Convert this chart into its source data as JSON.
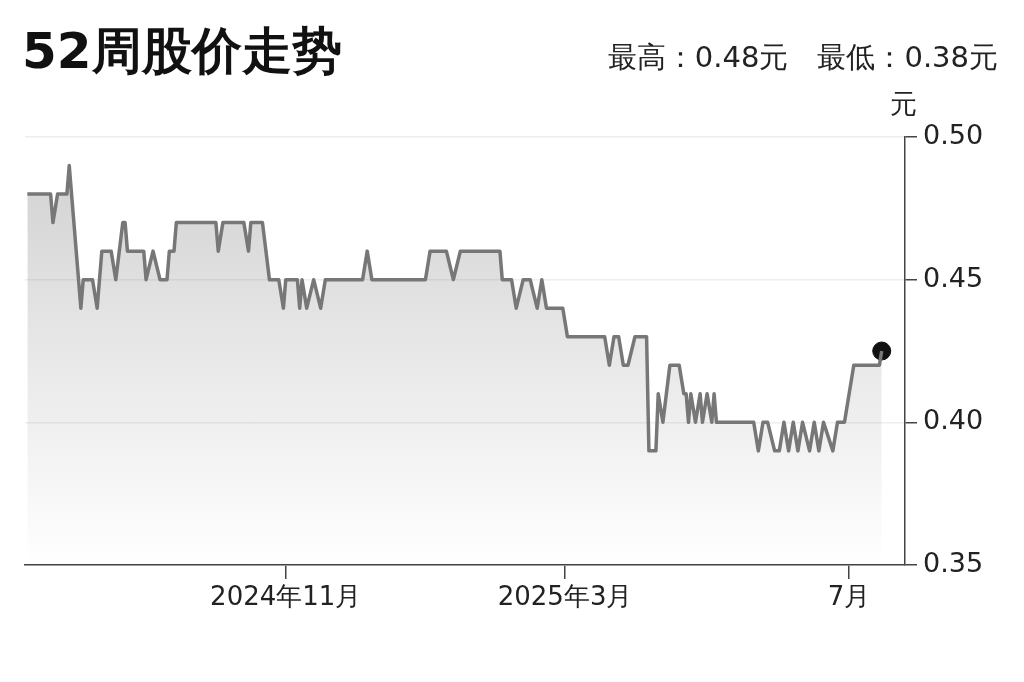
{
  "chart_data": {
    "type": "area",
    "title": "52周股价走势",
    "subtitle": "最高：0.48元　最低：0.38元",
    "ylabel": "元",
    "xlim": [
      "2024-07-12",
      "2025-07-25"
    ],
    "xticks": [
      {
        "value": "2024-11-01",
        "label": "2024年11月"
      },
      {
        "value": "2025-03-01",
        "label": "2025年3月"
      },
      {
        "value": "2025-07-01",
        "label": "7月"
      }
    ],
    "ylim": [
      0.35,
      0.5
    ],
    "yticks": [
      {
        "value": 0.35,
        "label": "0.35"
      },
      {
        "value": 0.4,
        "label": "0.40"
      },
      {
        "value": 0.45,
        "label": "0.45"
      },
      {
        "value": 0.5,
        "label": "0.50"
      }
    ],
    "grid": "y",
    "legend": false,
    "series": [
      {
        "type": "area",
        "color": "#777777",
        "marker": "none",
        "x": [
          "2024-07-13",
          "2024-07-23",
          "2024-07-24",
          "2024-07-26",
          "2024-07-30",
          "2024-07-31",
          "2024-08-03",
          "2024-08-05",
          "2024-08-06",
          "2024-08-10",
          "2024-08-12",
          "2024-08-14",
          "2024-08-18",
          "2024-08-20",
          "2024-08-23",
          "2024-08-24",
          "2024-08-25",
          "2024-09-01",
          "2024-09-02",
          "2024-09-05",
          "2024-09-08",
          "2024-09-11",
          "2024-09-12",
          "2024-09-14",
          "2024-09-15",
          "2024-10-02",
          "2024-10-03",
          "2024-10-05",
          "2024-10-14",
          "2024-10-16",
          "2024-10-17",
          "2024-10-22",
          "2024-10-25",
          "2024-10-29",
          "2024-10-31",
          "2024-11-01",
          "2024-11-06",
          "2024-11-07",
          "2024-11-08",
          "2024-11-10",
          "2024-11-13",
          "2024-11-16",
          "2024-11-18",
          "2024-12-04",
          "2024-12-06",
          "2024-12-08",
          "2024-12-31",
          "2025-01-02",
          "2025-01-09",
          "2025-01-12",
          "2025-01-15",
          "2025-02-01",
          "2025-02-02",
          "2025-02-06",
          "2025-02-08",
          "2025-02-11",
          "2025-02-14",
          "2025-02-17",
          "2025-02-19",
          "2025-02-21",
          "2025-02-28",
          "2025-03-02",
          "2025-03-18",
          "2025-03-20",
          "2025-03-22",
          "2025-03-24",
          "2025-03-26",
          "2025-03-28",
          "2025-03-31",
          "2025-04-02",
          "2025-04-05",
          "2025-04-06",
          "2025-04-09",
          "2025-04-10",
          "2025-04-12",
          "2025-04-15",
          "2025-04-19",
          "2025-04-21",
          "2025-04-22",
          "2025-04-23",
          "2025-04-24",
          "2025-04-26",
          "2025-04-28",
          "2025-04-29",
          "2025-05-01",
          "2025-05-03",
          "2025-05-04",
          "2025-05-05",
          "2025-05-21",
          "2025-05-23",
          "2025-05-25",
          "2025-05-27",
          "2025-05-30",
          "2025-06-01",
          "2025-06-03",
          "2025-06-05",
          "2025-06-07",
          "2025-06-09",
          "2025-06-11",
          "2025-06-14",
          "2025-06-16",
          "2025-06-18",
          "2025-06-20",
          "2025-06-24",
          "2025-06-26",
          "2025-06-29",
          "2025-07-01",
          "2025-07-03",
          "2025-07-14",
          "2025-07-15"
        ],
        "values": [
          0.48,
          0.48,
          0.47,
          0.48,
          0.48,
          0.49,
          0.46,
          0.44,
          0.45,
          0.45,
          0.44,
          0.46,
          0.46,
          0.45,
          0.47,
          0.47,
          0.46,
          0.46,
          0.45,
          0.46,
          0.45,
          0.45,
          0.46,
          0.46,
          0.47,
          0.47,
          0.46,
          0.47,
          0.47,
          0.46,
          0.47,
          0.47,
          0.45,
          0.45,
          0.44,
          0.45,
          0.45,
          0.44,
          0.45,
          0.44,
          0.45,
          0.44,
          0.45,
          0.45,
          0.46,
          0.45,
          0.45,
          0.46,
          0.46,
          0.45,
          0.46,
          0.46,
          0.45,
          0.45,
          0.44,
          0.45,
          0.45,
          0.44,
          0.45,
          0.44,
          0.44,
          0.43,
          0.43,
          0.42,
          0.43,
          0.43,
          0.42,
          0.42,
          0.43,
          0.43,
          0.43,
          0.39,
          0.39,
          0.41,
          0.4,
          0.42,
          0.42,
          0.41,
          0.41,
          0.4,
          0.41,
          0.4,
          0.41,
          0.4,
          0.41,
          0.4,
          0.41,
          0.4,
          0.4,
          0.39,
          0.4,
          0.4,
          0.39,
          0.39,
          0.4,
          0.39,
          0.4,
          0.39,
          0.4,
          0.39,
          0.4,
          0.39,
          0.4,
          0.39,
          0.4,
          0.4,
          0.41,
          0.42,
          0.42,
          0.425
        ]
      },
      {
        "type": "scatter",
        "color": "#111111",
        "marker": "circle",
        "x": [
          "2025-07-15"
        ],
        "values": [
          0.425
        ]
      }
    ]
  }
}
